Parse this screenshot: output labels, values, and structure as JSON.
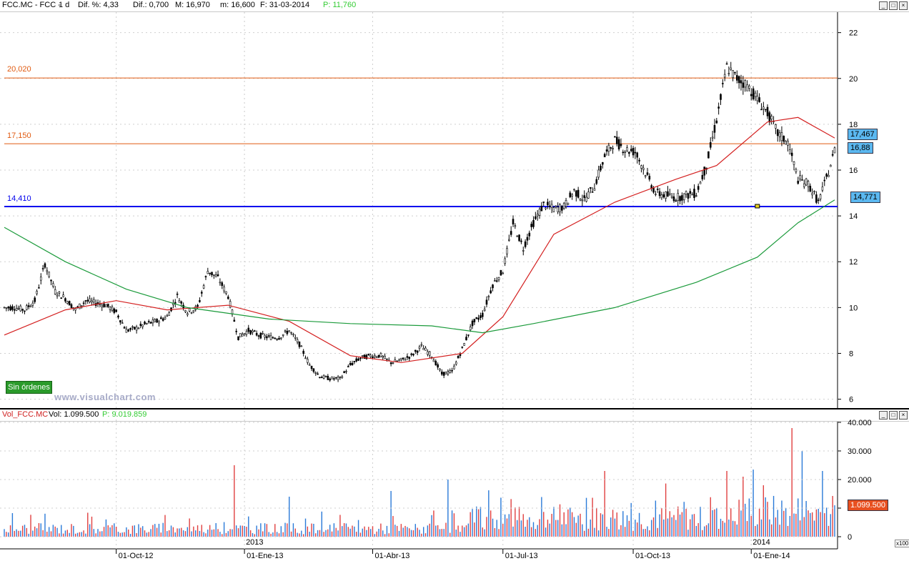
{
  "price_header": {
    "symbol": "FCC.MC - FCC -",
    "period": "1 d",
    "pct_label": "Dif. %: 4,33",
    "dif_label": "Dif.: 0,700",
    "max_label": "M: 16,970",
    "min_label": "m: 16,600",
    "date_label": "F: 31-03-2014",
    "p_label": "P: 11,760"
  },
  "volume_header": {
    "symbol": "Vol_FCC.MC",
    "vol_label": "Vol: 1.099.500",
    "p_label": "P: 9.019.859"
  },
  "badges": {
    "ma_red": "17,467",
    "last_price": "16,88",
    "ma_green": "14,771",
    "last_volume": "1.099.500"
  },
  "level_labels": {
    "l1": "20,020",
    "l2": "17,150",
    "l3": "14,410"
  },
  "sin_ordenes": "Sin órdenes",
  "watermark": "www.visualchart.com",
  "x100": "x100",
  "colors": {
    "up": "#ffffff",
    "down": "#000000",
    "ma_red": "#d42020",
    "ma_green": "#1a9a3a",
    "level_orange": "#e05a10",
    "support_blue": "#0000ee",
    "vol_blue": "#2a7ad8",
    "vol_red": "#e04040"
  },
  "chart_data": [
    {
      "type": "candlestick",
      "title": "FCC.MC - FCC - 1 d",
      "x_labels": [
        "01-Oct-12",
        "2013",
        "01-Ene-13",
        "01-Abr-13",
        "01-Jul-13",
        "01-Oct-13",
        "2014",
        "01-Ene-14"
      ],
      "y_ticks": [
        6,
        8,
        10,
        12,
        14,
        16,
        18,
        20,
        22
      ],
      "ylim": [
        5.8,
        22.8
      ],
      "horizontal_levels": [
        {
          "value": 20.02,
          "label": "20,020",
          "color": "#e05a10"
        },
        {
          "value": 17.15,
          "label": "17,150",
          "color": "#e05a10"
        },
        {
          "value": 14.41,
          "label": "14,410",
          "color": "#0000ee"
        }
      ],
      "close_series": {
        "name": "FCC",
        "points": [
          [
            0,
            10.0
          ],
          [
            5,
            10.0
          ],
          [
            10,
            9.9
          ],
          [
            15,
            10.3
          ],
          [
            20,
            11.9
          ],
          [
            25,
            10.7
          ],
          [
            30,
            10.4
          ],
          [
            35,
            9.9
          ],
          [
            40,
            10.3
          ],
          [
            45,
            10.2
          ],
          [
            50,
            10.1
          ],
          [
            55,
            9.8
          ],
          [
            60,
            9.0
          ],
          [
            65,
            9.1
          ],
          [
            70,
            9.3
          ],
          [
            75,
            9.4
          ],
          [
            80,
            9.6
          ],
          [
            85,
            10.5
          ],
          [
            90,
            9.8
          ],
          [
            95,
            10.0
          ],
          [
            100,
            11.6
          ],
          [
            105,
            11.3
          ],
          [
            110,
            10.5
          ],
          [
            115,
            8.7
          ],
          [
            120,
            9.0
          ],
          [
            125,
            8.8
          ],
          [
            130,
            8.7
          ],
          [
            135,
            8.7
          ],
          [
            140,
            9.0
          ],
          [
            145,
            8.4
          ],
          [
            150,
            7.5
          ],
          [
            155,
            7.0
          ],
          [
            160,
            6.9
          ],
          [
            165,
            6.9
          ],
          [
            170,
            7.5
          ],
          [
            175,
            7.8
          ],
          [
            180,
            7.9
          ],
          [
            185,
            7.9
          ],
          [
            190,
            7.6
          ],
          [
            195,
            7.7
          ],
          [
            200,
            7.9
          ],
          [
            205,
            8.3
          ],
          [
            210,
            7.9
          ],
          [
            215,
            7.1
          ],
          [
            220,
            7.2
          ],
          [
            225,
            8.2
          ],
          [
            230,
            9.3
          ],
          [
            235,
            9.7
          ],
          [
            240,
            11.0
          ],
          [
            245,
            11.6
          ],
          [
            250,
            13.7
          ],
          [
            255,
            12.6
          ],
          [
            260,
            13.7
          ],
          [
            265,
            14.5
          ],
          [
            270,
            14.3
          ],
          [
            275,
            14.4
          ],
          [
            280,
            15.1
          ],
          [
            285,
            14.7
          ],
          [
            290,
            15.3
          ],
          [
            295,
            16.6
          ],
          [
            300,
            17.3
          ],
          [
            305,
            16.9
          ],
          [
            310,
            16.8
          ],
          [
            315,
            15.9
          ],
          [
            320,
            15.0
          ],
          [
            325,
            14.9
          ],
          [
            330,
            14.8
          ],
          [
            335,
            14.9
          ],
          [
            340,
            15.0
          ],
          [
            345,
            16.2
          ],
          [
            350,
            18.2
          ],
          [
            355,
            20.5
          ],
          [
            360,
            20.0
          ],
          [
            365,
            19.7
          ],
          [
            370,
            19.1
          ],
          [
            375,
            18.5
          ],
          [
            380,
            17.6
          ],
          [
            385,
            17.2
          ],
          [
            390,
            15.6
          ],
          [
            395,
            15.4
          ],
          [
            400,
            14.6
          ],
          [
            405,
            15.9
          ],
          [
            408,
            16.88
          ]
        ]
      },
      "moving_averages": [
        {
          "name": "MA short (red)",
          "last_value": 17.467,
          "points": [
            [
              0,
              8.8
            ],
            [
              30,
              9.9
            ],
            [
              55,
              10.3
            ],
            [
              80,
              9.9
            ],
            [
              110,
              10.1
            ],
            [
              140,
              9.4
            ],
            [
              170,
              7.9
            ],
            [
              195,
              7.6
            ],
            [
              225,
              8.0
            ],
            [
              245,
              9.6
            ],
            [
              270,
              13.2
            ],
            [
              300,
              14.6
            ],
            [
              330,
              15.6
            ],
            [
              350,
              16.2
            ],
            [
              375,
              18.1
            ],
            [
              390,
              18.3
            ],
            [
              408,
              17.4
            ]
          ]
        },
        {
          "name": "MA long (green)",
          "last_value": 14.771,
          "points": [
            [
              0,
              13.5
            ],
            [
              30,
              12.0
            ],
            [
              60,
              10.8
            ],
            [
              90,
              10.0
            ],
            [
              130,
              9.5
            ],
            [
              170,
              9.3
            ],
            [
              210,
              9.2
            ],
            [
              235,
              8.9
            ],
            [
              260,
              9.3
            ],
            [
              300,
              10.0
            ],
            [
              340,
              11.1
            ],
            [
              370,
              12.2
            ],
            [
              390,
              13.7
            ],
            [
              408,
              14.7
            ]
          ]
        }
      ],
      "marker": {
        "x": 370,
        "value": 14.41
      }
    },
    {
      "type": "bar",
      "title": "Vol_FCC.MC",
      "y_ticks": [
        "0",
        "10.000",
        "20.000",
        "30.000",
        "40.000"
      ],
      "ylim": [
        0,
        40000
      ],
      "unit": "x100",
      "spikes": [
        {
          "x": 113,
          "value": 25000
        },
        {
          "x": 295,
          "value": 23000
        },
        {
          "x": 355,
          "value": 23000
        },
        {
          "x": 363,
          "value": 21000
        },
        {
          "x": 373,
          "value": 18000
        },
        {
          "x": 387,
          "value": 38000
        },
        {
          "x": 392,
          "value": 30000
        },
        {
          "x": 402,
          "value": 23000
        },
        {
          "x": 218,
          "value": 20000
        },
        {
          "x": 190,
          "value": 16000
        },
        {
          "x": 140,
          "value": 14000
        }
      ],
      "last_value": 10995
    }
  ]
}
